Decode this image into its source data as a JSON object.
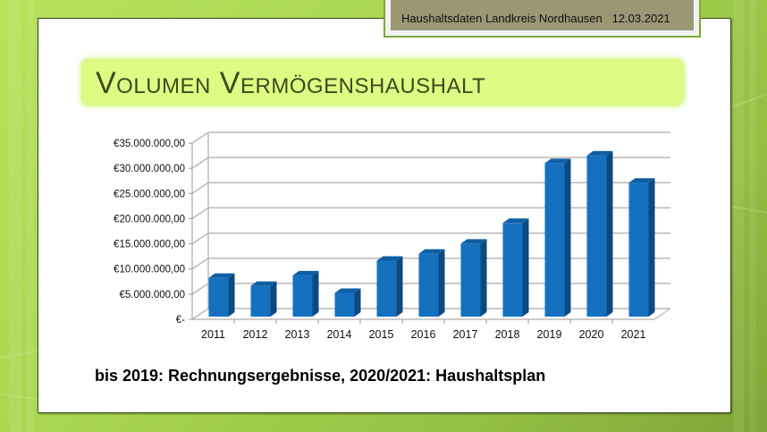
{
  "header": {
    "text": "Haushaltsdaten Landkreis Nordhausen   12.03.2021"
  },
  "slide": {
    "title": "Volumen Vermögenshaushalt",
    "footnote": "bis 2019: Rechnungsergebnisse, 2020/2021: Haushaltsplan"
  },
  "colors": {
    "bar_front": "#1571c0",
    "bar_side": "#0b4a80",
    "bar_top": "#0e5ea3",
    "grid": "#b8b8b8",
    "title_bg": "#defb84",
    "title_text": "#3e4a1c",
    "header_bg": "#9b9775",
    "background_green": "#a9d651"
  },
  "chart_data": {
    "type": "bar",
    "title": "Volumen Vermögenshaushalt",
    "xlabel": "",
    "ylabel": "",
    "categories": [
      "2011",
      "2012",
      "2013",
      "2014",
      "2015",
      "2016",
      "2017",
      "2018",
      "2019",
      "2020",
      "2021"
    ],
    "values": [
      7700000,
      6100000,
      8200000,
      4700000,
      11100000,
      12500000,
      14500000,
      18600000,
      30500000,
      32000000,
      26600000
    ],
    "ylim": [
      0,
      35000000
    ],
    "yticks": [
      0,
      5000000,
      10000000,
      15000000,
      20000000,
      25000000,
      30000000,
      35000000
    ],
    "ytick_labels": [
      "€-",
      "€5.000.000,00",
      "€10.000.000,00",
      "€15.000.000,00",
      "€20.000.000,00",
      "€25.000.000,00",
      "€30.000.000,00",
      "€35.000.000,00"
    ],
    "grid": true,
    "legend": "none",
    "style": "3d-column",
    "annotation": "bis 2019: Rechnungsergebnisse, 2020/2021: Haushaltsplan"
  }
}
